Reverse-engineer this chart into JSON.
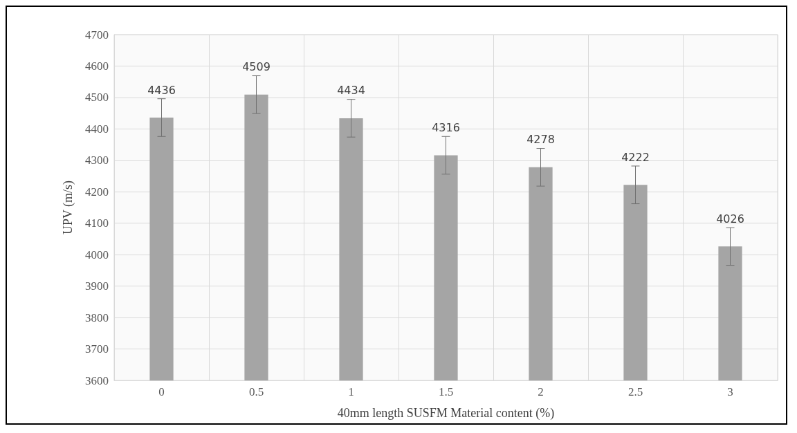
{
  "chart_data": {
    "type": "bar",
    "xlabel": "40mm length SUSFM Material content (%)",
    "ylabel": "UPV (m/s)",
    "categories": [
      "0",
      "0.5",
      "1",
      "1.5",
      "2",
      "2.5",
      "3"
    ],
    "values": [
      4436,
      4509,
      4434,
      4316,
      4278,
      4222,
      4026
    ],
    "errors": [
      60,
      60,
      60,
      60,
      60,
      60,
      60
    ],
    "color": "#a5a5a5",
    "data_labels": true,
    "grid": true,
    "ylim": [
      3600,
      4700
    ],
    "yticks": [
      3600,
      3700,
      3800,
      3900,
      4000,
      4100,
      4200,
      4300,
      4400,
      4500,
      4600,
      4700
    ]
  }
}
